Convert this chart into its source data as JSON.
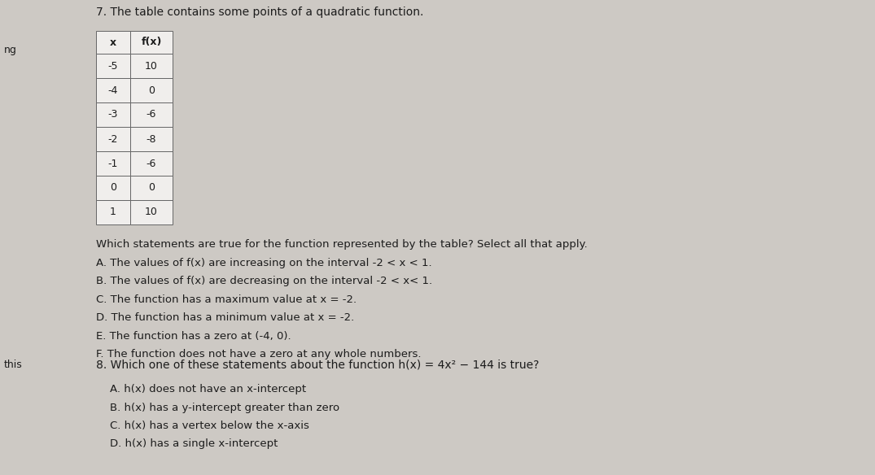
{
  "background_color": "#cdc9c4",
  "title_7": "7. The table contains some points of a quadratic function.",
  "left_label": "ng",
  "left_label2": "this",
  "table_x_header": "x",
  "table_fx_header": "f(x)",
  "table_data": [
    [
      "-5",
      "10"
    ],
    [
      "-4",
      "0"
    ],
    [
      "-3",
      "-6"
    ],
    [
      "-2",
      "-8"
    ],
    [
      "-1",
      "-6"
    ],
    [
      "0",
      "0"
    ],
    [
      "1",
      "10"
    ]
  ],
  "q7_intro": "Which statements are true for the function represented by the table? Select all that apply.",
  "q7_options": [
    "A. The values of f(x) are increasing on the interval -2 < x < 1.",
    "B. The values of f(x) are decreasing on the interval -2 < x< 1.",
    "C. The function has a maximum value at x = -2.",
    "D. The function has a minimum value at x = -2.",
    "E. The function has a zero at (-4, 0).",
    "F. The function does not have a zero at any whole numbers."
  ],
  "title_8": "8. Which one of these statements about the function h(x) = 4x² − 144 is true?",
  "q8_options": [
    "A. h(x) does not have an x-intercept",
    "B. h(x) has a y-intercept greater than zero",
    "C. h(x) has a vertex below the x-axis",
    "D. h(x) has a single x-intercept"
  ],
  "text_color": "#1c1c1c",
  "table_line_color": "#666666",
  "table_bg": "#f0eeec",
  "font_size_title": 10.0,
  "font_size_body": 9.5,
  "font_size_small": 9.0,
  "font_size_label": 9.5
}
